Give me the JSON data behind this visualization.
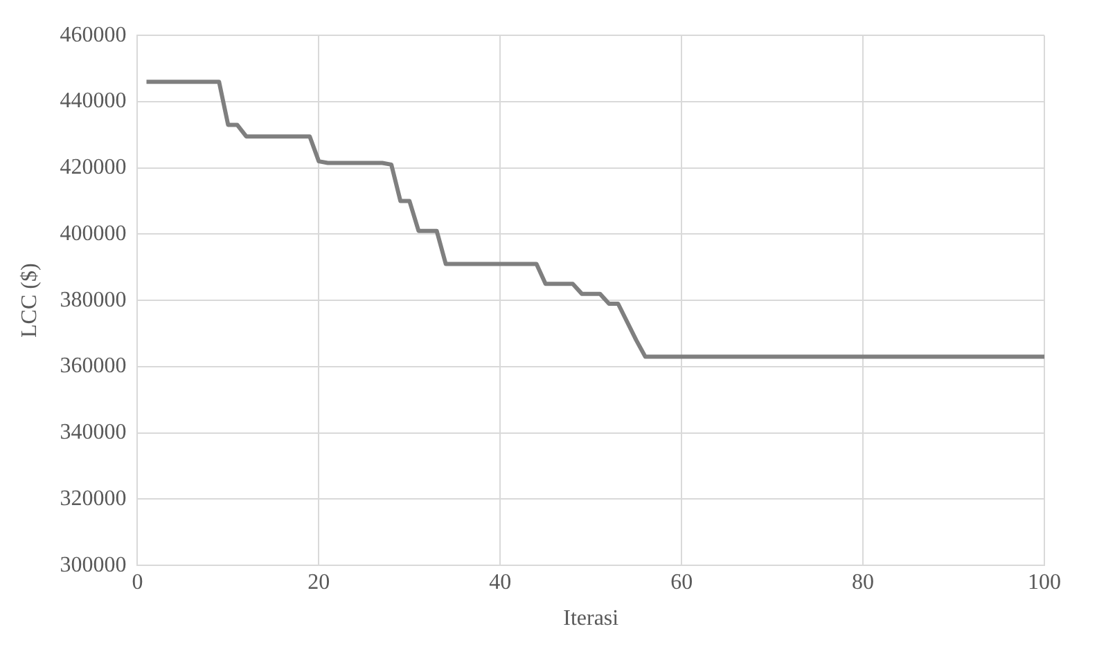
{
  "chart_data": {
    "type": "line",
    "xlabel": "Iterasi",
    "ylabel": "LCC ($)",
    "x": [
      1,
      9,
      10,
      11,
      12,
      19,
      20,
      21,
      27,
      28,
      29,
      30,
      31,
      33,
      34,
      44,
      45,
      48,
      49,
      51,
      52,
      53,
      55,
      56,
      100
    ],
    "series": [
      {
        "color": "#7f7f7f",
        "values": [
          446000,
          446000,
          433000,
          433000,
          429500,
          429500,
          422000,
          421500,
          421500,
          421000,
          410000,
          410000,
          401000,
          401000,
          391000,
          391000,
          385000,
          385000,
          382000,
          382000,
          379000,
          379000,
          368000,
          363000,
          363000
        ]
      }
    ],
    "xlim": [
      0,
      100
    ],
    "xticks": [
      0,
      20,
      40,
      60,
      80,
      100
    ],
    "ylim": [
      300000,
      460000
    ],
    "yticks": [
      300000,
      320000,
      340000,
      360000,
      380000,
      400000,
      420000,
      440000,
      460000
    ],
    "grid": true,
    "legend": false,
    "marker": "none",
    "line_style": "solid"
  }
}
